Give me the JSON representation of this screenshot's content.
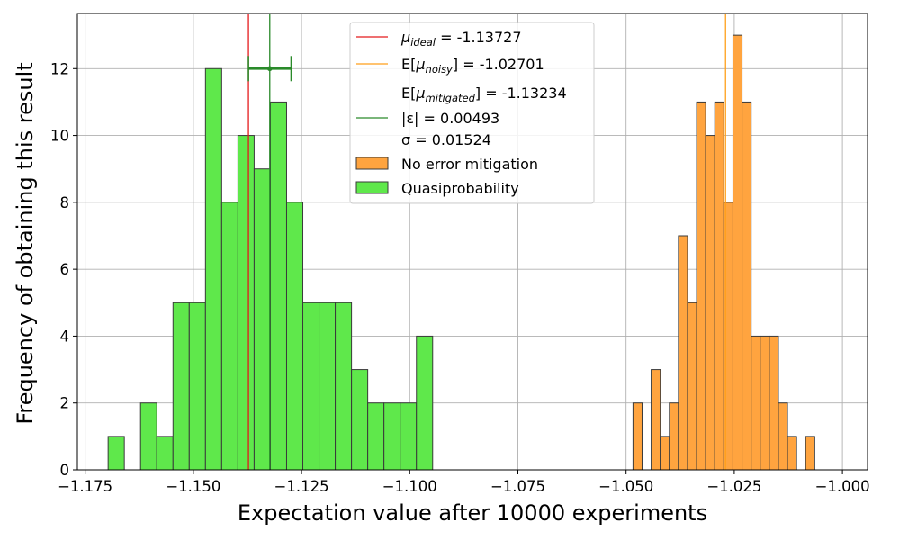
{
  "chart_data": {
    "type": "histogram",
    "title": "",
    "xlabel": "Expectation value after 10000 experiments",
    "ylabel": "Frequency of obtaining this result",
    "xlim": [
      -1.1768,
      -0.9942
    ],
    "ylim": [
      0,
      13.65
    ],
    "x_ticks": [
      -1.175,
      -1.15,
      -1.125,
      -1.1,
      -1.075,
      -1.05,
      -1.025,
      -1.0
    ],
    "x_tick_labels": [
      "−1.175",
      "−1.150",
      "−1.125",
      "−1.100",
      "−1.075",
      "−1.050",
      "−1.025",
      "−1.000"
    ],
    "y_ticks": [
      0,
      2,
      4,
      6,
      8,
      10,
      12
    ],
    "y_tick_labels": [
      "0",
      "2",
      "4",
      "6",
      "8",
      "10",
      "12"
    ],
    "grid": true,
    "legend_position": "upper center",
    "series": [
      {
        "name": "No error mitigation",
        "color": "#ffa43f",
        "bin_width": 0.0021,
        "bins": [
          {
            "x0": -1.0484,
            "count": 2
          },
          {
            "x0": -1.0442,
            "count": 3
          },
          {
            "x0": -1.0421,
            "count": 1
          },
          {
            "x0": -1.04,
            "count": 2
          },
          {
            "x0": -1.0379,
            "count": 7
          },
          {
            "x0": -1.0358,
            "count": 5
          },
          {
            "x0": -1.0337,
            "count": 11
          },
          {
            "x0": -1.0316,
            "count": 10
          },
          {
            "x0": -1.0295,
            "count": 11
          },
          {
            "x0": -1.0274,
            "count": 8
          },
          {
            "x0": -1.0253,
            "count": 13
          },
          {
            "x0": -1.0232,
            "count": 11
          },
          {
            "x0": -1.0211,
            "count": 4
          },
          {
            "x0": -1.019,
            "count": 4
          },
          {
            "x0": -1.0169,
            "count": 4
          },
          {
            "x0": -1.0148,
            "count": 2
          },
          {
            "x0": -1.0127,
            "count": 1
          },
          {
            "x0": -1.0085,
            "count": 1
          }
        ]
      },
      {
        "name": "Quasiprobability",
        "color": "#5fe84b",
        "bin_width": 0.00375,
        "bins": [
          {
            "x0": -1.1697,
            "count": 1
          },
          {
            "x0": -1.1622,
            "count": 2
          },
          {
            "x0": -1.15845,
            "count": 1
          },
          {
            "x0": -1.1547,
            "count": 5
          },
          {
            "x0": -1.15095,
            "count": 5
          },
          {
            "x0": -1.1472,
            "count": 12
          },
          {
            "x0": -1.14345,
            "count": 8
          },
          {
            "x0": -1.1397,
            "count": 10
          },
          {
            "x0": -1.13595,
            "count": 9
          },
          {
            "x0": -1.1322,
            "count": 11
          },
          {
            "x0": -1.12845,
            "count": 8
          },
          {
            "x0": -1.1247,
            "count": 5
          },
          {
            "x0": -1.12095,
            "count": 5
          },
          {
            "x0": -1.1172,
            "count": 5
          },
          {
            "x0": -1.11345,
            "count": 3
          },
          {
            "x0": -1.1097,
            "count": 2
          },
          {
            "x0": -1.10595,
            "count": 2
          },
          {
            "x0": -1.1022,
            "count": 2
          },
          {
            "x0": -1.09845,
            "count": 4
          }
        ]
      }
    ],
    "reference_lines": [
      {
        "name": "mu_ideal",
        "x": -1.13727,
        "color": "#e41a1c"
      },
      {
        "name": "mu_noisy",
        "x": -1.02701,
        "color": "#ff9f1a"
      },
      {
        "name": "mu_mitigated",
        "x": -1.13234,
        "color": "#2a8a2a"
      }
    ],
    "error_bar": {
      "x": -1.13234,
      "y": 12.0,
      "xerr": 0.00493,
      "color": "#2a8a2a"
    },
    "legend": {
      "entries": [
        {
          "key": "ideal",
          "text": "μ_ideal = -1.13727",
          "style": "line",
          "color": "#e41a1c"
        },
        {
          "key": "noisy",
          "text": "E[μ_noisy] = -1.02701",
          "style": "line",
          "color": "#ff9f1a"
        },
        {
          "key": "mitigated",
          "lines": [
            "E[μ_mitigated] = -1.13234",
            "|ε| = 0.00493",
            "σ = 0.01524"
          ],
          "style": "line",
          "color": "#2a8a2a"
        },
        {
          "key": "no_mitigation",
          "text": "No error mitigation",
          "style": "patch",
          "color": "#ffa43f"
        },
        {
          "key": "quasi",
          "text": "Quasiprobability",
          "style": "patch",
          "color": "#5fe84b"
        }
      ]
    }
  }
}
